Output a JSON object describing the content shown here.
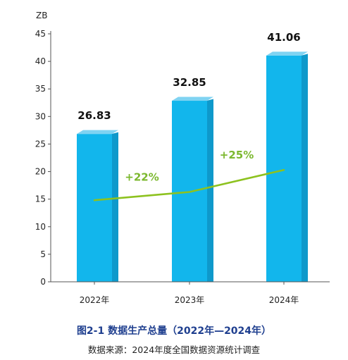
{
  "chart_data": {
    "type": "bar",
    "unit_label": "ZB",
    "categories": [
      "2022年",
      "2023年",
      "2024年"
    ],
    "values": [
      26.83,
      32.85,
      41.06
    ],
    "value_labels": [
      "26.83",
      "32.85",
      "41.06"
    ],
    "ylim": [
      0,
      45
    ],
    "yticks": [
      0,
      5,
      10,
      15,
      20,
      25,
      30,
      35,
      40,
      45
    ],
    "growth_line": {
      "points": [
        14.8,
        16.3,
        20.3
      ],
      "labels": [
        "+22%",
        "+25%"
      ]
    },
    "title": "图2-1 数据生产总量（2022年—2024年）",
    "source": "数据来源：2024年度全国数据资源统计调查"
  },
  "colors": {
    "bar_front": "#12b6ec",
    "bar_side": "#0e99cb",
    "bar_top": "#7fd3f2",
    "growth_line": "#8dc21f",
    "growth_label": "#7cb82f",
    "title": "#1f3f8f"
  }
}
